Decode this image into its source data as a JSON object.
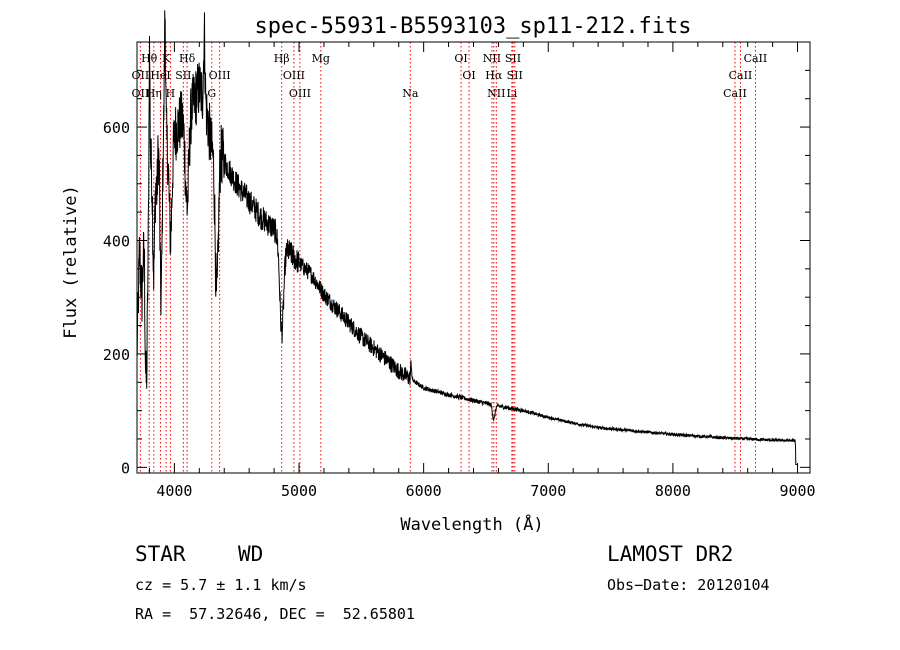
{
  "chart_data": {
    "type": "line",
    "title": "spec-55931-B5593103_sp11-212.fits",
    "xlabel": "Wavelength (Å)",
    "ylabel": "Flux (relative)",
    "xlim": [
      3700,
      9100
    ],
    "ylim": [
      -10,
      750
    ],
    "x_ticks": [
      4000,
      5000,
      6000,
      7000,
      8000,
      9000
    ],
    "y_ticks": [
      0,
      200,
      400,
      600
    ],
    "grid": false,
    "line_color": "#000000",
    "marker_color": "#dd0000",
    "spectral_lines": [
      {
        "label": "Hθ",
        "x": 3798,
        "row": 0
      },
      {
        "label": "K",
        "x": 3934,
        "row": 0
      },
      {
        "label": "Hδ",
        "x": 4102,
        "row": 0
      },
      {
        "label": "Hβ",
        "x": 4861,
        "row": 0
      },
      {
        "label": "Mg",
        "x": 5175,
        "row": 0
      },
      {
        "label": "OI",
        "x": 6300,
        "row": 0
      },
      {
        "label": "NII",
        "x": 6548,
        "row": 0
      },
      {
        "label": "SII",
        "x": 6717,
        "row": 0
      },
      {
        "label": "CaII",
        "x": 8662,
        "row": 0
      },
      {
        "label": "OII",
        "x": 3727,
        "row": 1
      },
      {
        "label": "HeI",
        "x": 3889,
        "row": 1
      },
      {
        "label": "SII",
        "x": 4072,
        "row": 1
      },
      {
        "label": "OIII",
        "x": 4363,
        "row": 1
      },
      {
        "label": "OIII",
        "x": 4959,
        "row": 1
      },
      {
        "label": "OI",
        "x": 6364,
        "row": 1
      },
      {
        "label": "Hα",
        "x": 6563,
        "row": 1
      },
      {
        "label": "SII",
        "x": 6731,
        "row": 1
      },
      {
        "label": "CaII",
        "x": 8542,
        "row": 1
      },
      {
        "label": "OII",
        "x": 3727,
        "row": 2
      },
      {
        "label": "Hη",
        "x": 3835,
        "row": 2
      },
      {
        "label": "H",
        "x": 3968,
        "row": 2
      },
      {
        "label": "G",
        "x": 4300,
        "row": 2
      },
      {
        "label": "OIII",
        "x": 5007,
        "row": 2
      },
      {
        "label": "Na",
        "x": 5893,
        "row": 2
      },
      {
        "label": "NII",
        "x": 6583,
        "row": 2
      },
      {
        "label": "Li",
        "x": 6708,
        "row": 2
      },
      {
        "label": "CaII",
        "x": 8498,
        "row": 2
      }
    ],
    "spectrum_envelope": {
      "x": [
        3700,
        3720,
        3740,
        3760,
        3780,
        3800,
        3820,
        3840,
        3860,
        3880,
        3900,
        3920,
        3940,
        3960,
        3980,
        4000,
        4050,
        4100,
        4150,
        4200,
        4250,
        4300,
        4350,
        4400,
        4500,
        4600,
        4700,
        4800,
        4900,
        5000,
        5100,
        5200,
        5300,
        5400,
        5500,
        5600,
        5700,
        5800,
        5900,
        6000,
        6200,
        6400,
        6600,
        6800,
        7000,
        7200,
        7400,
        7600,
        7800,
        8000,
        8200,
        8400,
        8600,
        8800,
        8980,
        9000
      ],
      "y": [
        200,
        380,
        300,
        450,
        280,
        500,
        560,
        620,
        480,
        700,
        560,
        640,
        580,
        600,
        620,
        590,
        610,
        620,
        640,
        670,
        640,
        560,
        570,
        540,
        500,
        470,
        440,
        420,
        385,
        360,
        340,
        305,
        280,
        255,
        230,
        210,
        190,
        170,
        155,
        140,
        128,
        118,
        108,
        100,
        88,
        78,
        70,
        66,
        62,
        58,
        55,
        52,
        50,
        48,
        47,
        5
      ]
    },
    "absorption_features": [
      {
        "x": 3770,
        "depth": 200,
        "width": 12
      },
      {
        "x": 3835,
        "depth": 260,
        "width": 12
      },
      {
        "x": 3890,
        "depth": 320,
        "width": 14
      },
      {
        "x": 3970,
        "depth": 200,
        "width": 18
      },
      {
        "x": 4102,
        "depth": 160,
        "width": 20
      },
      {
        "x": 4340,
        "depth": 270,
        "width": 18
      },
      {
        "x": 4861,
        "depth": 160,
        "width": 22
      },
      {
        "x": 6563,
        "depth": 25,
        "width": 14
      }
    ],
    "emission_features": [
      {
        "x": 3800,
        "height": 240,
        "width": 6
      },
      {
        "x": 3925,
        "height": 180,
        "width": 6
      },
      {
        "x": 4240,
        "height": 120,
        "width": 8
      },
      {
        "x": 5900,
        "height": 25,
        "width": 6
      }
    ]
  },
  "info": {
    "class": "STAR",
    "subclass": "WD",
    "survey": "LAMOST DR2",
    "redshift": "cz = 5.7 ± 1.1 km/s",
    "obs_date": "Obs−Date: 20120104",
    "coords": "RA =  57.32646, DEC =  52.65801"
  }
}
